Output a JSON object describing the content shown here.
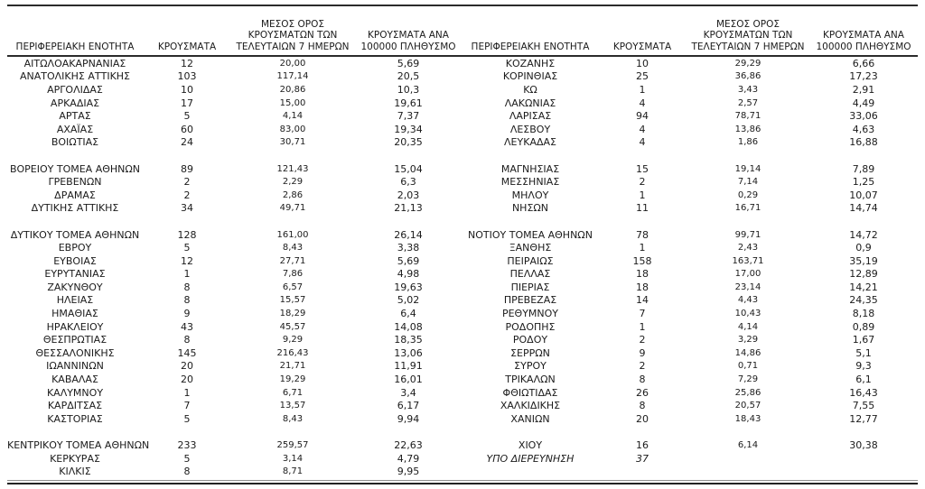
{
  "colors": {
    "background": "#ffffff",
    "text": "#1b1b1b",
    "rule_dark": "#2b2b2b",
    "rule_light": "#8f8f8f"
  },
  "table": {
    "columns": [
      {
        "key": "region",
        "label": "ΠΕΡΙΦΕΡΕΙΑΚΗ ΕΝΟΤΗΤΑ"
      },
      {
        "key": "cases",
        "label": "ΚΡΟΥΣΜΑΤΑ"
      },
      {
        "key": "avg7",
        "label": "ΜΕΣΟΣ ΟΡΟΣ\nΚΡΟΥΣΜΑΤΩΝ ΤΩΝ\nΤΕΛΕΥΤΑΙΩΝ 7 ΗΜΕΡΩΝ"
      },
      {
        "key": "per100k",
        "label": "ΚΡΟΥΣΜΑΤΑ ΑΝΑ\n100000 ΠΛΗΘΥΣΜΟ"
      }
    ],
    "left_rows": [
      {
        "region": "ΑΙΤΩΛΟΑΚΑΡΝΑΝΙΑΣ",
        "cases": "12",
        "avg7": "20,00",
        "per100k": "5,69"
      },
      {
        "region": "ΑΝΑΤΟΛΙΚΗΣ ΑΤΤΙΚΗΣ",
        "cases": "103",
        "avg7": "117,14",
        "per100k": "20,5"
      },
      {
        "region": "ΑΡΓΟΛΙΔΑΣ",
        "cases": "10",
        "avg7": "20,86",
        "per100k": "10,3"
      },
      {
        "region": "ΑΡΚΑΔΙΑΣ",
        "cases": "17",
        "avg7": "15,00",
        "per100k": "19,61"
      },
      {
        "region": "ΑΡΤΑΣ",
        "cases": "5",
        "avg7": "4,14",
        "per100k": "7,37"
      },
      {
        "region": "ΑΧΑΪΑΣ",
        "cases": "60",
        "avg7": "83,00",
        "per100k": "19,34"
      },
      {
        "region": "ΒΟΙΩΤΙΑΣ",
        "cases": "24",
        "avg7": "30,71",
        "per100k": "20,35"
      },
      {
        "region": "",
        "cases": "",
        "avg7": "",
        "per100k": ""
      },
      {
        "region": "ΒΟΡΕΙΟΥ ΤΟΜΕΑ ΑΘΗΝΩΝ",
        "cases": "89",
        "avg7": "121,43",
        "per100k": "15,04"
      },
      {
        "region": "ΓΡΕΒΕΝΩΝ",
        "cases": "2",
        "avg7": "2,29",
        "per100k": "6,3"
      },
      {
        "region": "ΔΡΑΜΑΣ",
        "cases": "2",
        "avg7": "2,86",
        "per100k": "2,03"
      },
      {
        "region": "ΔΥΤΙΚΗΣ ΑΤΤΙΚΗΣ",
        "cases": "34",
        "avg7": "49,71",
        "per100k": "21,13"
      },
      {
        "region": "",
        "cases": "",
        "avg7": "",
        "per100k": ""
      },
      {
        "region": "ΔΥΤΙΚΟΥ ΤΟΜΕΑ ΑΘΗΝΩΝ",
        "cases": "128",
        "avg7": "161,00",
        "per100k": "26,14"
      },
      {
        "region": "ΕΒΡΟΥ",
        "cases": "5",
        "avg7": "8,43",
        "per100k": "3,38"
      },
      {
        "region": "ΕΥΒΟΙΑΣ",
        "cases": "12",
        "avg7": "27,71",
        "per100k": "5,69"
      },
      {
        "region": "ΕΥΡΥΤΑΝΙΑΣ",
        "cases": "1",
        "avg7": "7,86",
        "per100k": "4,98"
      },
      {
        "region": "ΖΑΚΥΝΘΟΥ",
        "cases": "8",
        "avg7": "6,57",
        "per100k": "19,63"
      },
      {
        "region": "ΗΛΕΙΑΣ",
        "cases": "8",
        "avg7": "15,57",
        "per100k": "5,02"
      },
      {
        "region": "ΗΜΑΘΙΑΣ",
        "cases": "9",
        "avg7": "18,29",
        "per100k": "6,4"
      },
      {
        "region": "ΗΡΑΚΛΕΙΟΥ",
        "cases": "43",
        "avg7": "45,57",
        "per100k": "14,08"
      },
      {
        "region": "ΘΕΣΠΡΩΤΙΑΣ",
        "cases": "8",
        "avg7": "9,29",
        "per100k": "18,35"
      },
      {
        "region": "ΘΕΣΣΑΛΟΝΙΚΗΣ",
        "cases": "145",
        "avg7": "216,43",
        "per100k": "13,06"
      },
      {
        "region": "ΙΩΑΝΝΙΝΩΝ",
        "cases": "20",
        "avg7": "21,71",
        "per100k": "11,91"
      },
      {
        "region": "ΚΑΒΑΛΑΣ",
        "cases": "20",
        "avg7": "19,29",
        "per100k": "16,01"
      },
      {
        "region": "ΚΑΛΥΜΝΟΥ",
        "cases": "1",
        "avg7": "6,71",
        "per100k": "3,4"
      },
      {
        "region": "ΚΑΡΔΙΤΣΑΣ",
        "cases": "7",
        "avg7": "13,57",
        "per100k": "6,17"
      },
      {
        "region": "ΚΑΣΤΟΡΙΑΣ",
        "cases": "5",
        "avg7": "8,43",
        "per100k": "9,94"
      },
      {
        "region": "",
        "cases": "",
        "avg7": "",
        "per100k": ""
      },
      {
        "region": "ΚΕΝΤΡΙΚΟΥ ΤΟΜΕΑ ΑΘΗΝΩΝ",
        "cases": "233",
        "avg7": "259,57",
        "per100k": "22,63"
      },
      {
        "region": "ΚΕΡΚΥΡΑΣ",
        "cases": "5",
        "avg7": "3,14",
        "per100k": "4,79"
      },
      {
        "region": "ΚΙΛΚΙΣ",
        "cases": "8",
        "avg7": "8,71",
        "per100k": "9,95"
      }
    ],
    "right_rows": [
      {
        "region": "ΚΟΖΑΝΗΣ",
        "cases": "10",
        "avg7": "29,29",
        "per100k": "6,66"
      },
      {
        "region": "ΚΟΡΙΝΘΙΑΣ",
        "cases": "25",
        "avg7": "36,86",
        "per100k": "17,23"
      },
      {
        "region": "ΚΩ",
        "cases": "1",
        "avg7": "3,43",
        "per100k": "2,91"
      },
      {
        "region": "ΛΑΚΩΝΙΑΣ",
        "cases": "4",
        "avg7": "2,57",
        "per100k": "4,49"
      },
      {
        "region": "ΛΑΡΙΣΑΣ",
        "cases": "94",
        "avg7": "78,71",
        "per100k": "33,06"
      },
      {
        "region": "ΛΕΣΒΟΥ",
        "cases": "4",
        "avg7": "13,86",
        "per100k": "4,63"
      },
      {
        "region": "ΛΕΥΚΑΔΑΣ",
        "cases": "4",
        "avg7": "1,86",
        "per100k": "16,88"
      },
      {
        "region": "",
        "cases": "",
        "avg7": "",
        "per100k": ""
      },
      {
        "region": "ΜΑΓΝΗΣΙΑΣ",
        "cases": "15",
        "avg7": "19,14",
        "per100k": "7,89"
      },
      {
        "region": "ΜΕΣΣΗΝΙΑΣ",
        "cases": "2",
        "avg7": "7,14",
        "per100k": "1,25"
      },
      {
        "region": "ΜΗΛΟΥ",
        "cases": "1",
        "avg7": "0,29",
        "per100k": "10,07"
      },
      {
        "region": "ΝΗΣΩΝ",
        "cases": "11",
        "avg7": "16,71",
        "per100k": "14,74"
      },
      {
        "region": "",
        "cases": "",
        "avg7": "",
        "per100k": ""
      },
      {
        "region": "ΝΟΤΙΟΥ ΤΟΜΕΑ ΑΘΗΝΩΝ",
        "cases": "78",
        "avg7": "99,71",
        "per100k": "14,72"
      },
      {
        "region": "ΞΑΝΘΗΣ",
        "cases": "1",
        "avg7": "2,43",
        "per100k": "0,9"
      },
      {
        "region": "ΠΕΙΡΑΙΩΣ",
        "cases": "158",
        "avg7": "163,71",
        "per100k": "35,19"
      },
      {
        "region": "ΠΕΛΛΑΣ",
        "cases": "18",
        "avg7": "17,00",
        "per100k": "12,89"
      },
      {
        "region": "ΠΙΕΡΙΑΣ",
        "cases": "18",
        "avg7": "23,14",
        "per100k": "14,21"
      },
      {
        "region": "ΠΡΕΒΕΖΑΣ",
        "cases": "14",
        "avg7": "4,43",
        "per100k": "24,35"
      },
      {
        "region": "ΡΕΘΥΜΝΟΥ",
        "cases": "7",
        "avg7": "10,43",
        "per100k": "8,18"
      },
      {
        "region": "ΡΟΔΟΠΗΣ",
        "cases": "1",
        "avg7": "4,14",
        "per100k": "0,89"
      },
      {
        "region": "ΡΟΔΟΥ",
        "cases": "2",
        "avg7": "3,29",
        "per100k": "1,67"
      },
      {
        "region": "ΣΕΡΡΩΝ",
        "cases": "9",
        "avg7": "14,86",
        "per100k": "5,1"
      },
      {
        "region": "ΣΥΡΟΥ",
        "cases": "2",
        "avg7": "0,71",
        "per100k": "9,3"
      },
      {
        "region": "ΤΡΙΚΑΛΩΝ",
        "cases": "8",
        "avg7": "7,29",
        "per100k": "6,1"
      },
      {
        "region": "ΦΘΙΩΤΙΔΑΣ",
        "cases": "26",
        "avg7": "25,86",
        "per100k": "16,43"
      },
      {
        "region": "ΧΑΛΚΙΔΙΚΗΣ",
        "cases": "8",
        "avg7": "20,57",
        "per100k": "7,55"
      },
      {
        "region": "ΧΑΝΙΩΝ",
        "cases": "20",
        "avg7": "18,43",
        "per100k": "12,77"
      },
      {
        "region": "",
        "cases": "",
        "avg7": "",
        "per100k": ""
      },
      {
        "region": "ΧΙΟΥ",
        "cases": "16",
        "avg7": "6,14",
        "per100k": "30,38"
      },
      {
        "region": "ΥΠΟ ΔΙΕΡΕΥΝΗΣΗ",
        "cases": "37",
        "avg7": "",
        "per100k": "",
        "italic": true
      },
      {
        "region": "",
        "cases": "",
        "avg7": "",
        "per100k": ""
      }
    ]
  }
}
